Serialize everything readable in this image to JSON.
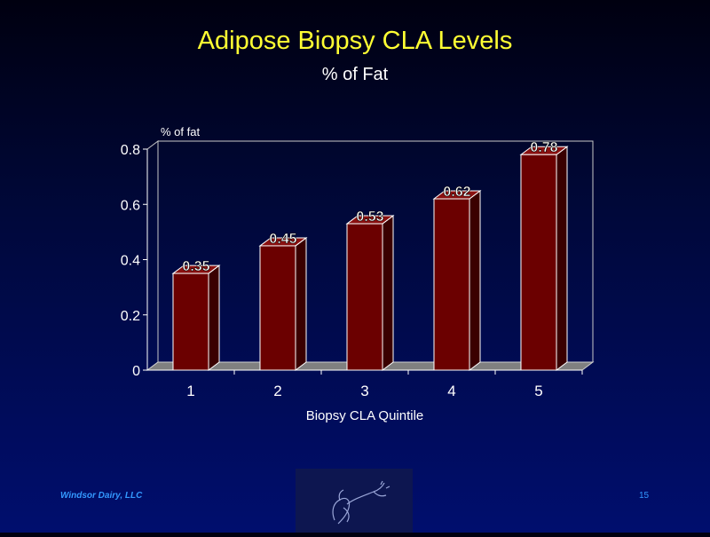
{
  "slide": {
    "title": "Adipose Biopsy CLA Levels",
    "subtitle": "% of Fat",
    "footer_company": "Windsor Dairy, LLC",
    "page_number": "15"
  },
  "colors": {
    "background": "#00083a",
    "title": "#ffff33",
    "bar_front": "#6b0000",
    "bar_side": "#3a0000",
    "floor": "#808080",
    "footer": "#3399ff"
  },
  "chart_data": {
    "type": "bar",
    "title": "",
    "xlabel": "Biopsy CLA Quintile",
    "ylabel": "% of fat",
    "categories": [
      "1",
      "2",
      "3",
      "4",
      "5"
    ],
    "values": [
      0.35,
      0.45,
      0.53,
      0.62,
      0.78
    ],
    "data_labels": [
      "0.35",
      "0.45",
      "0.53",
      "0.62",
      "0.78"
    ],
    "ylim": [
      0,
      0.8
    ],
    "yticks": [
      "0",
      "0.2",
      "0.4",
      "0.6",
      "0.8"
    ],
    "grid": false,
    "legend": "none"
  }
}
